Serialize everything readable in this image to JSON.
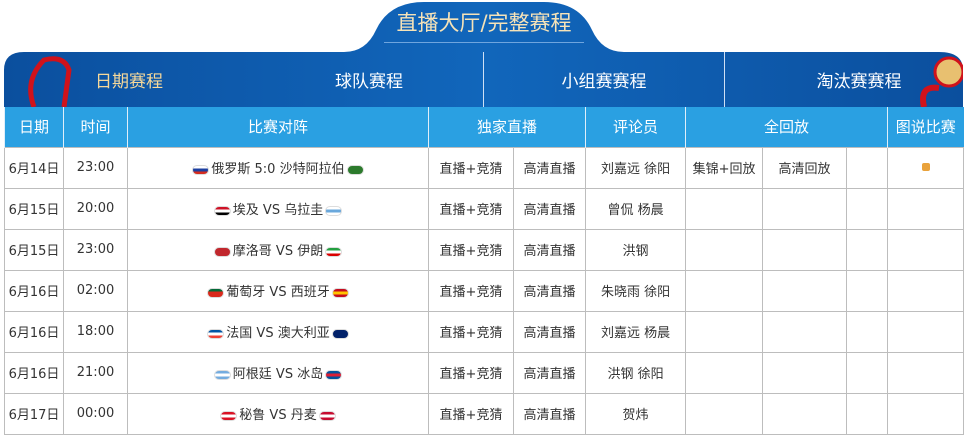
{
  "header": {
    "title": "直播大厅/完整赛程",
    "nav": [
      {
        "label": "日期赛程",
        "active": true
      },
      {
        "label": "球队赛程"
      },
      {
        "label": "小组赛赛程"
      },
      {
        "label": "淘汰赛赛程"
      }
    ]
  },
  "colors": {
    "banner": "#0d5db0",
    "header_row": "#2aa0e2",
    "active_nav": "#f6d89a"
  },
  "table": {
    "headers": [
      "日期",
      "时间",
      "比赛对阵",
      "独家直播",
      "评论员",
      "全回放",
      "图说比赛"
    ],
    "rows": [
      {
        "date": "6月14日",
        "time": "23:00",
        "home": "俄罗斯",
        "sep": "5:0",
        "away": "沙特阿拉伯",
        "live1": "直播+竞猜",
        "live2": "高清直播",
        "commentators": "刘嘉远 徐阳",
        "replay1": "集锦+回放",
        "replay2": "高清回放",
        "pic": true,
        "f1": [
          "#fff",
          "#1c3fa0",
          "#d52b1e"
        ],
        "f2": [
          "#2c7a2c",
          "#2c7a2c",
          "#2c7a2c"
        ]
      },
      {
        "date": "6月15日",
        "time": "20:00",
        "home": "埃及",
        "sep": "VS",
        "away": "乌拉圭",
        "live1": "直播+竞猜",
        "live2": "高清直播",
        "commentators": "曾侃 杨晨",
        "f1": [
          "#ce1126",
          "#fff",
          "#000"
        ],
        "f2": [
          "#fff",
          "#6aa8dc",
          "#fff"
        ]
      },
      {
        "date": "6月15日",
        "time": "23:00",
        "home": "摩洛哥",
        "sep": "VS",
        "away": "伊朗",
        "live1": "直播+竞猜",
        "live2": "高清直播",
        "commentators": "洪钢",
        "f1": [
          "#c1272d",
          "#c1272d",
          "#c1272d"
        ],
        "f2": [
          "#239f40",
          "#fff",
          "#da0000"
        ]
      },
      {
        "date": "6月16日",
        "time": "02:00",
        "home": "葡萄牙",
        "sep": "VS",
        "away": "西班牙",
        "live1": "直播+竞猜",
        "live2": "高清直播",
        "commentators": "朱晓雨 徐阳",
        "f1": [
          "#046a38",
          "#da291c",
          "#da291c"
        ],
        "f2": [
          "#c60b1e",
          "#ffc400",
          "#c60b1e"
        ]
      },
      {
        "date": "6月16日",
        "time": "18:00",
        "home": "法国",
        "sep": "VS",
        "away": "澳大利亚",
        "live1": "直播+竞猜",
        "live2": "高清直播",
        "commentators": "刘嘉远 杨晨",
        "f1": [
          "#0055a4",
          "#fff",
          "#ef4135"
        ],
        "f2": [
          "#012169",
          "#012169",
          "#012169"
        ]
      },
      {
        "date": "6月16日",
        "time": "21:00",
        "home": "阿根廷",
        "sep": "VS",
        "away": "冰岛",
        "live1": "直播+竞猜",
        "live2": "高清直播",
        "commentators": "洪钢 徐阳",
        "f1": [
          "#74acdf",
          "#fff",
          "#74acdf"
        ],
        "f2": [
          "#02529c",
          "#dc1e35",
          "#02529c"
        ]
      },
      {
        "date": "6月17日",
        "time": "00:00",
        "home": "秘鲁",
        "sep": "VS",
        "away": "丹麦",
        "live1": "直播+竞猜",
        "live2": "高清直播",
        "commentators": "贺炜",
        "f1": [
          "#d91023",
          "#fff",
          "#d91023"
        ],
        "f2": [
          "#c60c30",
          "#fff",
          "#c60c30"
        ]
      }
    ]
  }
}
